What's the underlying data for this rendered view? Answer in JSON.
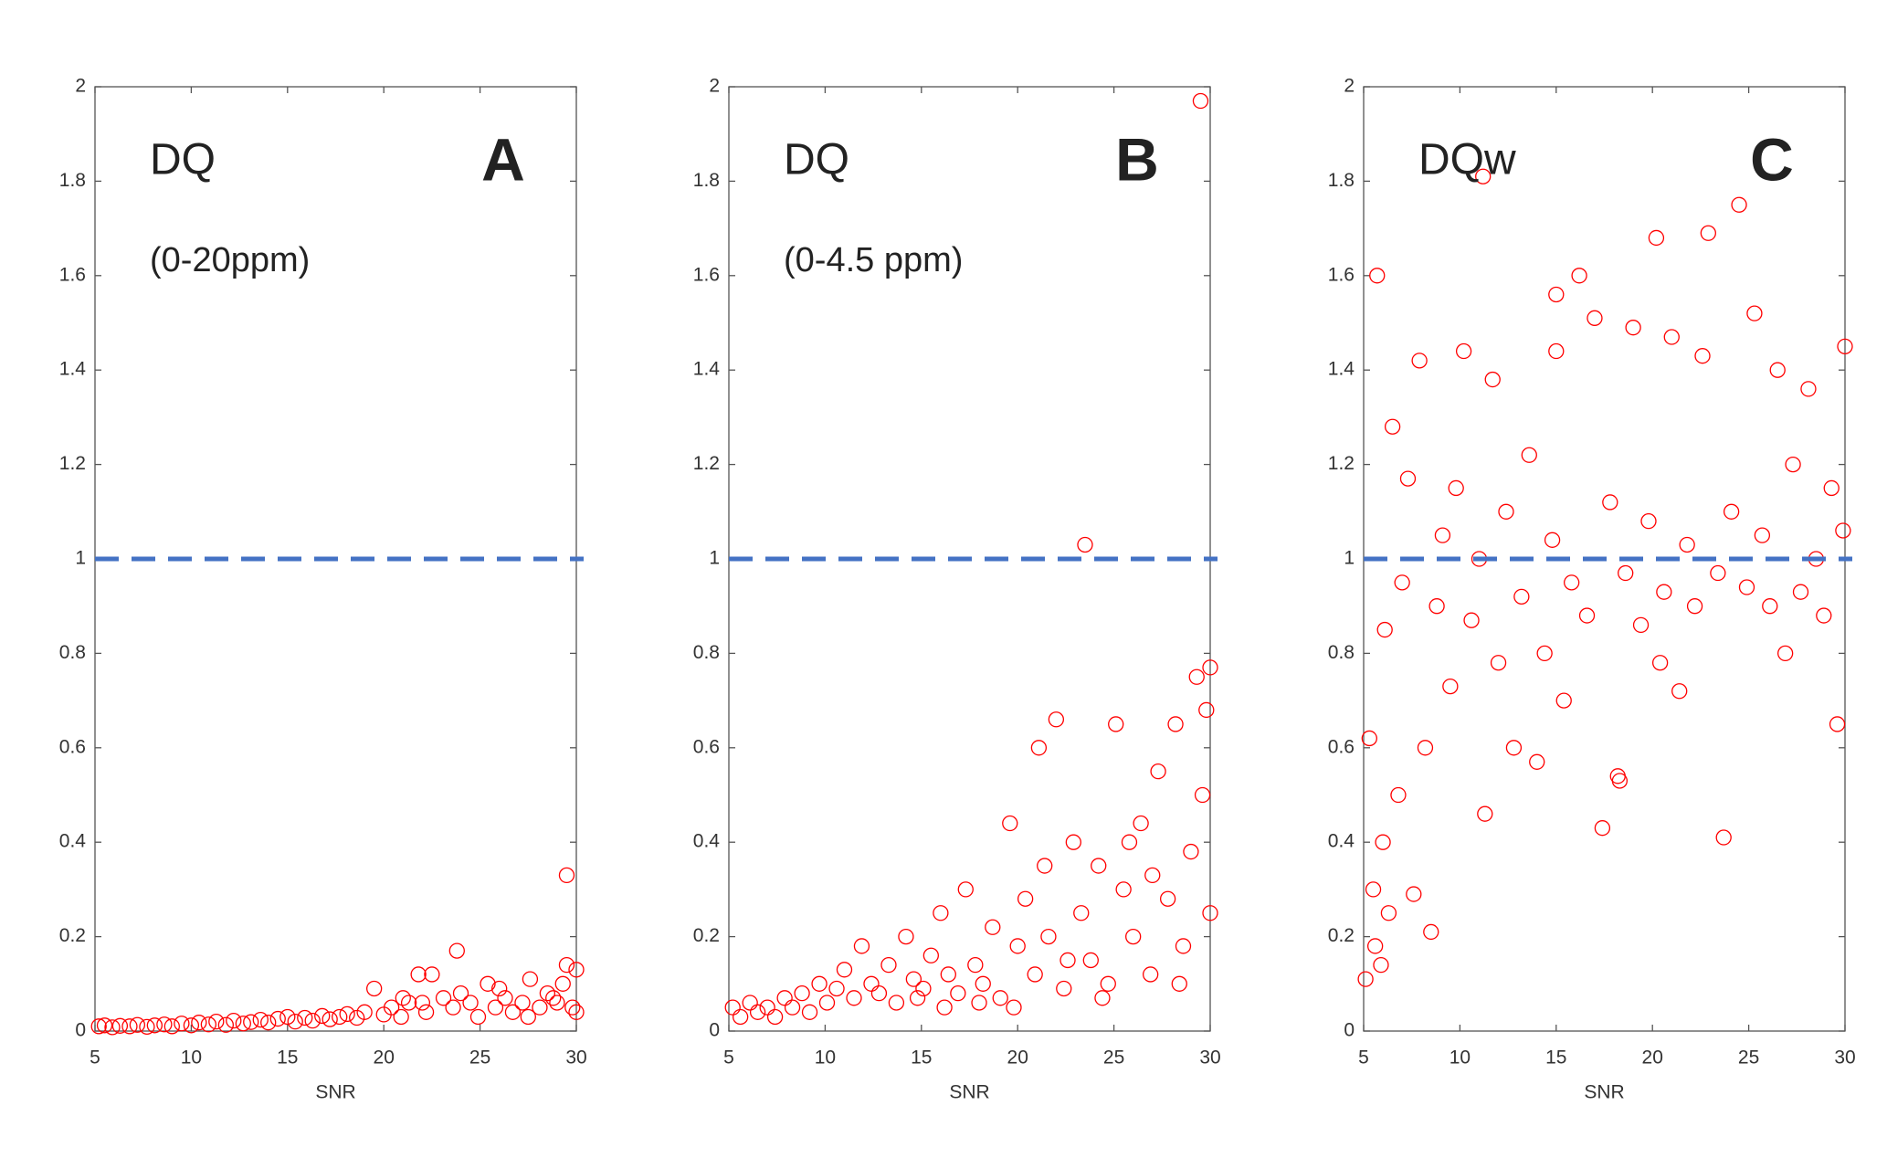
{
  "chart_data": [
    {
      "type": "scatter",
      "annotations": [
        "DQ",
        "(0-20ppm)",
        "A"
      ],
      "xlabel": "SNR",
      "color": "#ff0000",
      "hline": 1,
      "hline_color": "#4472c4",
      "xlim": [
        5,
        30
      ],
      "xticks": [
        5,
        10,
        15,
        20,
        25,
        30
      ],
      "ylim": [
        0,
        2
      ],
      "yticks": [
        0,
        0.2,
        0.4,
        0.6,
        0.8,
        1,
        1.2,
        1.4,
        1.6,
        1.8,
        2
      ],
      "x": [
        5.2,
        5.5,
        5.9,
        6.3,
        6.8,
        7.2,
        7.7,
        8.1,
        8.6,
        9.0,
        9.5,
        10.0,
        10.4,
        10.9,
        11.3,
        11.8,
        12.2,
        12.7,
        13.1,
        13.6,
        14.0,
        14.5,
        15.0,
        15.4,
        15.9,
        16.3,
        16.8,
        17.2,
        17.7,
        18.1,
        18.6,
        19.0,
        19.5,
        20.0,
        20.4,
        20.9,
        21.3,
        21.8,
        22.2,
        22.5,
        23.1,
        23.6,
        23.8,
        24.5,
        24.9,
        25.4,
        25.8,
        26.3,
        26.7,
        27.2,
        27.6,
        28.1,
        28.5,
        29.0,
        29.3,
        29.5,
        29.5,
        29.8,
        30.0,
        30.0,
        28.8,
        27.5,
        26.0,
        24.0,
        22.0,
        21.0
      ],
      "values": [
        0.01,
        0.012,
        0.008,
        0.011,
        0.01,
        0.013,
        0.009,
        0.012,
        0.014,
        0.01,
        0.016,
        0.012,
        0.018,
        0.014,
        0.02,
        0.013,
        0.022,
        0.016,
        0.019,
        0.024,
        0.018,
        0.026,
        0.03,
        0.02,
        0.028,
        0.022,
        0.032,
        0.025,
        0.03,
        0.036,
        0.028,
        0.04,
        0.09,
        0.035,
        0.05,
        0.03,
        0.06,
        0.12,
        0.04,
        0.12,
        0.07,
        0.05,
        0.17,
        0.06,
        0.03,
        0.1,
        0.05,
        0.07,
        0.04,
        0.06,
        0.11,
        0.05,
        0.08,
        0.06,
        0.1,
        0.33,
        0.14,
        0.05,
        0.13,
        0.04,
        0.07,
        0.03,
        0.09,
        0.08,
        0.06,
        0.07
      ]
    },
    {
      "type": "scatter",
      "annotations": [
        "DQ",
        "(0-4.5 ppm)",
        "B"
      ],
      "xlabel": "SNR",
      "color": "#ff0000",
      "hline": 1,
      "hline_color": "#4472c4",
      "xlim": [
        5,
        30
      ],
      "xticks": [
        5,
        10,
        15,
        20,
        25,
        30
      ],
      "ylim": [
        0,
        2
      ],
      "yticks": [
        0,
        0.2,
        0.4,
        0.6,
        0.8,
        1,
        1.2,
        1.4,
        1.6,
        1.8,
        2
      ],
      "x": [
        5.2,
        5.6,
        6.1,
        6.5,
        7.0,
        7.4,
        7.9,
        8.3,
        8.8,
        9.2,
        9.7,
        10.1,
        10.6,
        11.0,
        11.5,
        11.9,
        12.4,
        12.8,
        13.3,
        13.7,
        14.2,
        14.6,
        15.1,
        15.5,
        16.0,
        16.4,
        16.9,
        17.3,
        17.8,
        18.2,
        18.7,
        19.1,
        19.6,
        20.0,
        20.4,
        20.9,
        21.1,
        21.6,
        22.0,
        22.4,
        22.9,
        23.3,
        23.5,
        23.8,
        24.2,
        24.7,
        25.1,
        25.5,
        26.0,
        26.4,
        26.9,
        27.3,
        27.8,
        28.2,
        28.6,
        29.0,
        29.3,
        29.5,
        29.6,
        29.8,
        30.0,
        30.0,
        28.4,
        27.0,
        25.8,
        24.4,
        22.6,
        21.4,
        19.8,
        18.0,
        16.2,
        14.8
      ],
      "values": [
        0.05,
        0.03,
        0.06,
        0.04,
        0.05,
        0.03,
        0.07,
        0.05,
        0.08,
        0.04,
        0.1,
        0.06,
        0.09,
        0.13,
        0.07,
        0.18,
        0.1,
        0.08,
        0.14,
        0.06,
        0.2,
        0.11,
        0.09,
        0.16,
        0.25,
        0.12,
        0.08,
        0.3,
        0.14,
        0.1,
        0.22,
        0.07,
        0.44,
        0.18,
        0.28,
        0.12,
        0.6,
        0.2,
        0.66,
        0.09,
        0.4,
        0.25,
        1.03,
        0.15,
        0.35,
        0.1,
        0.65,
        0.3,
        0.2,
        0.44,
        0.12,
        0.55,
        0.28,
        0.65,
        0.18,
        0.38,
        0.75,
        1.97,
        0.5,
        0.68,
        0.25,
        0.77,
        0.1,
        0.33,
        0.4,
        0.07,
        0.15,
        0.35,
        0.05,
        0.06,
        0.05,
        0.07
      ]
    },
    {
      "type": "scatter",
      "annotations": [
        "DQw",
        "C"
      ],
      "xlabel": "SNR",
      "color": "#ff0000",
      "hline": 1,
      "hline_color": "#4472c4",
      "xlim": [
        5,
        30
      ],
      "xticks": [
        5,
        10,
        15,
        20,
        25,
        30
      ],
      "ylim": [
        0,
        2
      ],
      "yticks": [
        0,
        0.2,
        0.4,
        0.6,
        0.8,
        1,
        1.2,
        1.4,
        1.6,
        1.8,
        2
      ],
      "x": [
        5.1,
        5.3,
        5.5,
        5.7,
        5.9,
        6.1,
        6.3,
        6.5,
        6.8,
        7.0,
        7.3,
        7.6,
        7.9,
        8.2,
        8.5,
        8.8,
        9.1,
        9.5,
        9.8,
        10.2,
        10.6,
        11.0,
        11.3,
        11.7,
        12.0,
        12.4,
        12.8,
        13.2,
        13.6,
        14.0,
        14.4,
        14.8,
        15.0,
        15.4,
        15.8,
        16.2,
        16.6,
        17.0,
        17.4,
        17.8,
        18.2,
        18.6,
        19.0,
        19.4,
        19.8,
        20.2,
        20.6,
        21.0,
        21.4,
        21.8,
        22.2,
        22.6,
        22.9,
        23.4,
        23.7,
        24.1,
        24.5,
        24.9,
        25.3,
        25.7,
        26.1,
        26.5,
        26.9,
        27.3,
        27.7,
        28.1,
        28.5,
        28.9,
        29.3,
        29.6,
        29.9,
        30.0,
        5.6,
        6.0,
        11.2,
        15.0,
        18.3,
        20.4
      ],
      "values": [
        0.11,
        0.62,
        0.3,
        1.6,
        0.14,
        0.85,
        0.25,
        1.28,
        0.5,
        0.95,
        1.17,
        0.29,
        1.42,
        0.6,
        0.21,
        0.9,
        1.05,
        0.73,
        1.15,
        1.44,
        0.87,
        1.0,
        0.46,
        1.38,
        0.78,
        1.1,
        0.6,
        0.92,
        1.22,
        0.57,
        0.8,
        1.04,
        1.56,
        0.7,
        0.95,
        1.6,
        0.88,
        1.51,
        0.43,
        1.12,
        0.54,
        0.97,
        1.49,
        0.86,
        1.08,
        1.68,
        0.93,
        1.47,
        0.72,
        1.03,
        0.9,
        1.43,
        1.69,
        0.97,
        0.41,
        1.1,
        1.75,
        0.94,
        1.52,
        1.05,
        0.9,
        1.4,
        0.8,
        1.2,
        0.93,
        1.36,
        1.0,
        0.88,
        1.15,
        0.65,
        1.06,
        1.45,
        0.18,
        0.4,
        1.81,
        1.44,
        0.53,
        0.78
      ]
    }
  ]
}
